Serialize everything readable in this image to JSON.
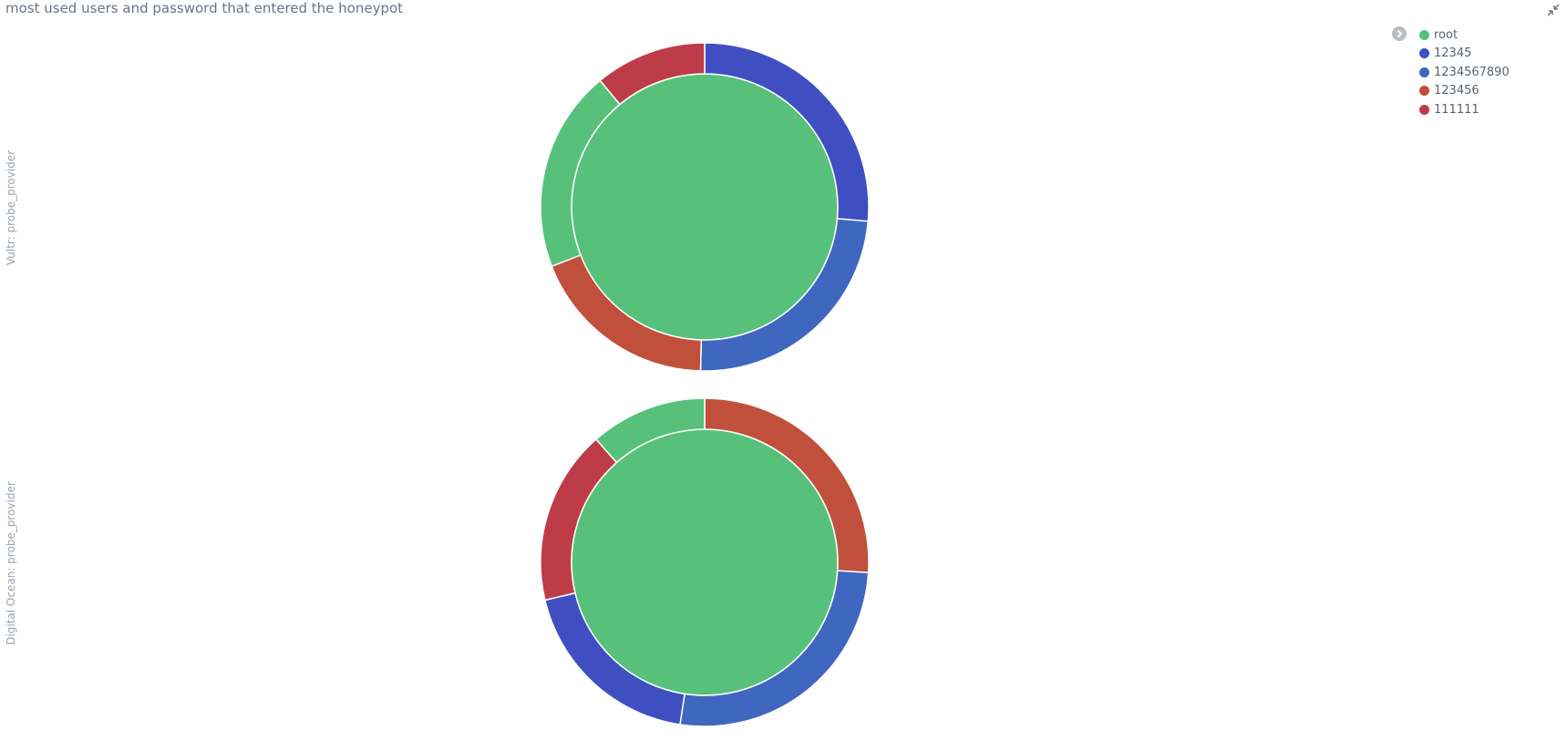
{
  "title": "most used users and password that entered the honeypot",
  "colors": {
    "root": "#57c17b",
    "12345": "#3f4fc2",
    "1234567890": "#4067c0",
    "123456": "#c0503c",
    "111111": "#be3c49"
  },
  "legend": {
    "items": [
      "root",
      "12345",
      "1234567890",
      "123456",
      "111111"
    ]
  },
  "chart_data": {
    "type": "pie",
    "layout": "rows",
    "donut_rings": [
      "user",
      "password"
    ],
    "charts": [
      {
        "row_label": "Vultr: probe_provider",
        "inner": [
          {
            "label": "root",
            "value": 100
          }
        ],
        "outer": [
          {
            "label": "12345",
            "value": 26.4
          },
          {
            "label": "1234567890",
            "value": 24.0
          },
          {
            "label": "123456",
            "value": 18.7
          },
          {
            "label": "root",
            "value": 19.9
          },
          {
            "label": "111111",
            "value": 11.0
          }
        ]
      },
      {
        "row_label": "Digital Ocean: probe_provider",
        "inner": [
          {
            "label": "root",
            "value": 100
          }
        ],
        "outer": [
          {
            "label": "123456",
            "value": 26.0
          },
          {
            "label": "1234567890",
            "value": 26.4
          },
          {
            "label": "12345",
            "value": 18.9
          },
          {
            "label": "111111",
            "value": 17.2
          },
          {
            "label": "root",
            "value": 11.5
          }
        ]
      }
    ]
  }
}
